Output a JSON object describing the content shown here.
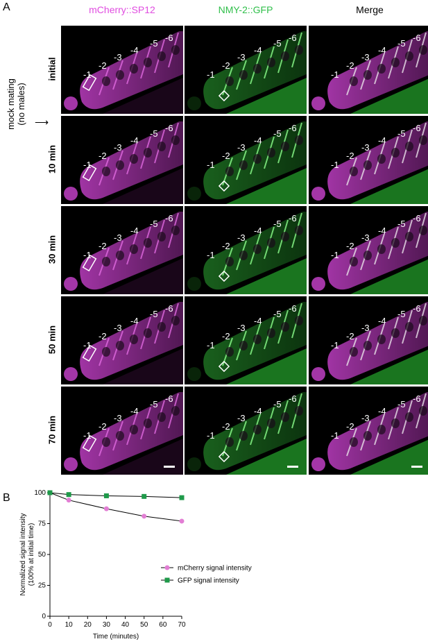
{
  "panel_a_letter": "A",
  "panel_b_letter": "B",
  "column_headers": [
    "mCherry::SP12",
    "NMY-2::GFP",
    "Merge"
  ],
  "header_colors": [
    "#e04ce0",
    "#2fbf4a",
    "#000000"
  ],
  "side_label_line1": "mock mating",
  "side_label_line2": "(no males)",
  "rows": [
    {
      "label": "initial"
    },
    {
      "label": "10 min"
    },
    {
      "label": "30 min"
    },
    {
      "label": "50 min"
    },
    {
      "label": "70 min"
    }
  ],
  "oocyte_labels": [
    "-1",
    "-2",
    "-3",
    "-4",
    "-5",
    "-6"
  ],
  "colors": {
    "magenta": "#d23ad6",
    "green": "#3cd23c"
  },
  "chart_data": {
    "type": "line",
    "xlabel": "Time (minutes)",
    "ylabel_line1": "Normalized signal intensity",
    "ylabel_line2": "(100% at initial time)",
    "x": [
      0,
      10,
      30,
      50,
      70
    ],
    "xlim": [
      0,
      70
    ],
    "ylim": [
      0,
      100
    ],
    "xticks": [
      "0",
      "10",
      "20",
      "30",
      "40",
      "50",
      "60",
      "70"
    ],
    "yticks": [
      "0",
      "25",
      "50",
      "75",
      "100"
    ],
    "grid": false,
    "legend_position": "center-right",
    "series": [
      {
        "name": "mCherry signal intensity",
        "values": [
          100,
          94,
          87,
          81,
          77
        ],
        "color": "#e27ed4",
        "marker": "circle"
      },
      {
        "name": "GFP signal intensity",
        "values": [
          100,
          98.5,
          97.5,
          97,
          96
        ],
        "color": "#1f9a4a",
        "marker": "square"
      }
    ]
  }
}
